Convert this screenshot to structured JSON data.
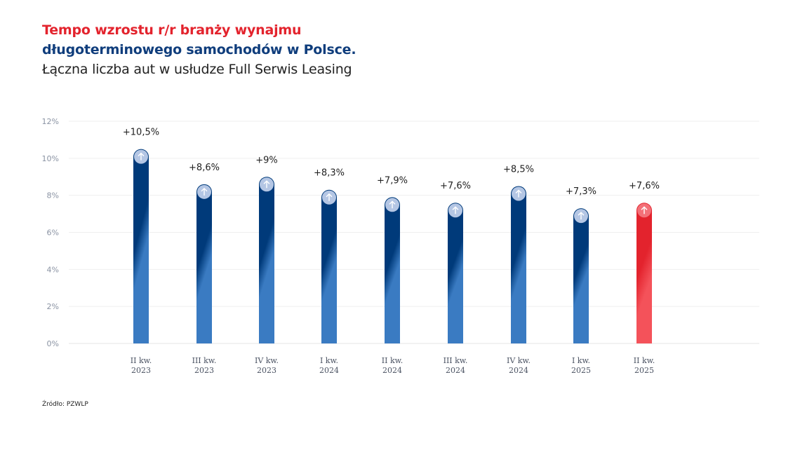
{
  "title_line1": "Tempo wzrostu r/r branży wynajmu",
  "title_line2": "długoterminowego samochodów w Polsce.",
  "subtitle": "Łączna liczba aut w usłudze Full Serwis Leasing",
  "source": "Źródło: PZWLP",
  "colors": {
    "title_red": "#e3232d",
    "title_blue": "#0f3d7c",
    "bar_dark": "#003a7a",
    "bar_light": "#3a7bc2",
    "highlight_red": "#e3232d"
  },
  "chart_data": {
    "type": "bar",
    "categories": [
      [
        "II kw.",
        "2023"
      ],
      [
        "III kw.",
        "2023"
      ],
      [
        "IV kw.",
        "2023"
      ],
      [
        "I kw.",
        "2024"
      ],
      [
        "II kw.",
        "2024"
      ],
      [
        "III kw.",
        "2024"
      ],
      [
        "IV kw.",
        "2024"
      ],
      [
        "I kw.",
        "2025"
      ],
      [
        "II kw.",
        "2025"
      ]
    ],
    "values": [
      10.5,
      8.6,
      9,
      8.3,
      7.9,
      7.6,
      8.5,
      7.3,
      7.6
    ],
    "data_labels": [
      "+10,5%",
      "+8,6%",
      "+9%",
      "+8,3%",
      "+7,9%",
      "+7,6%",
      "+8,5%",
      "+7,3%",
      "+7,6%"
    ],
    "highlighted_index": 8,
    "yticks": [
      "0%",
      "2%",
      "4%",
      "6%",
      "8%",
      "10%",
      "12%"
    ],
    "ylim": [
      0,
      12
    ],
    "grid": true,
    "bar_icon": "arrow-up-icon"
  }
}
